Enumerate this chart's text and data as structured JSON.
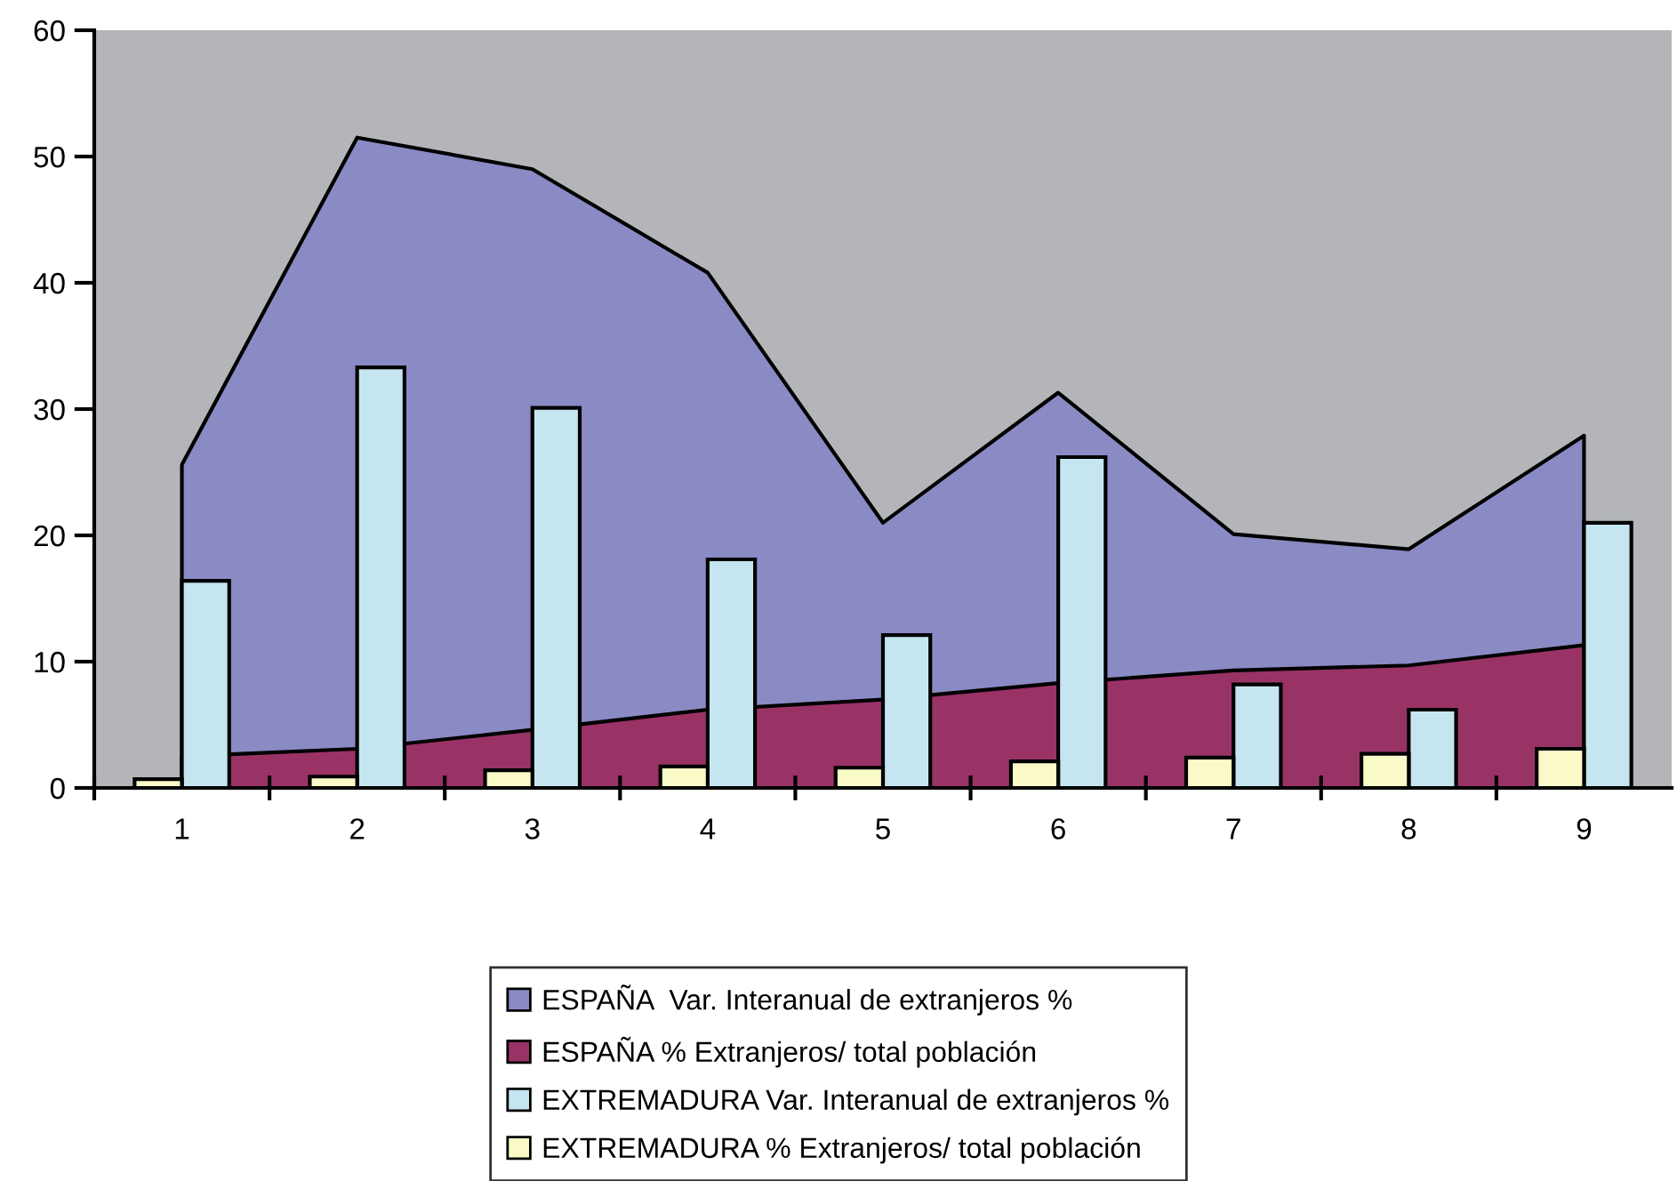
{
  "chart_data": {
    "type": "bar",
    "categories": [
      "1",
      "2",
      "3",
      "4",
      "5",
      "6",
      "7",
      "8",
      "9"
    ],
    "ylim": [
      0,
      60
    ],
    "yticks": [
      0,
      10,
      20,
      30,
      40,
      50,
      60
    ],
    "grid": false,
    "legend": "bottom",
    "series": [
      {
        "name": "ESPAÑA  Var. Interanual de extranjeros %",
        "type": "area",
        "color": "#8a8ac4",
        "values": [
          25.6,
          51.5,
          49.0,
          40.8,
          21.0,
          31.3,
          20.1,
          18.9,
          27.9
        ]
      },
      {
        "name": "ESPAÑA % Extranjeros/ total población",
        "type": "area",
        "color": "#993366",
        "values": [
          2.5,
          3.1,
          4.6,
          6.2,
          7.0,
          8.3,
          9.3,
          9.7,
          11.3
        ]
      },
      {
        "name": "EXTREMADURA Var. Interanual de extranjeros %",
        "color": "#c5e6f0",
        "values": [
          16.4,
          33.3,
          30.1,
          18.1,
          12.1,
          26.2,
          8.2,
          6.2,
          21.0
        ]
      },
      {
        "name": "EXTREMADURA % Extranjeros/ total población",
        "color": "#fafac8",
        "values": [
          0.7,
          0.9,
          1.4,
          1.7,
          1.6,
          2.1,
          2.4,
          2.7,
          3.1
        ]
      }
    ]
  }
}
